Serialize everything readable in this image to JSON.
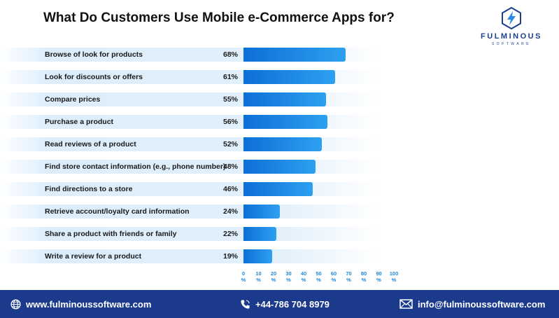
{
  "chart_data": {
    "type": "bar",
    "orientation": "horizontal",
    "title": "What Do Customers Use Mobile e-Commerce Apps for?",
    "categories": [
      "Browse of look for products",
      "Look for discounts or offers",
      "Compare prices",
      "Purchase a product",
      "Read reviews of a product",
      "Find store contact information (e.g., phone number)",
      "Find directions to a store",
      "Retrieve account/loyalty card information",
      "Share a product with friends or family",
      "Write a review for a product"
    ],
    "values": [
      68,
      61,
      55,
      56,
      52,
      48,
      46,
      24,
      22,
      19
    ],
    "value_labels": [
      "68%",
      "61%",
      "55%",
      "56%",
      "52%",
      "48%",
      "46%",
      "24%",
      "22%",
      "19%"
    ],
    "xlim": [
      0,
      100
    ],
    "x_ticks": [
      0,
      10,
      20,
      30,
      40,
      50,
      60,
      70,
      80,
      90,
      100
    ],
    "x_tick_unit": "%",
    "grid": false,
    "bar_color": "#1a7fe0"
  },
  "brand": {
    "name": "FULMINOUS",
    "tagline": "SOFTWARE",
    "color": "#1b3f8f",
    "icon": "lightning-hexagon-icon"
  },
  "footer": {
    "website": "www.fulminoussoftware.com",
    "phone": "+44-786 704 8979",
    "email": "info@fulminoussoftware.com",
    "background": "#1b3a8c"
  }
}
